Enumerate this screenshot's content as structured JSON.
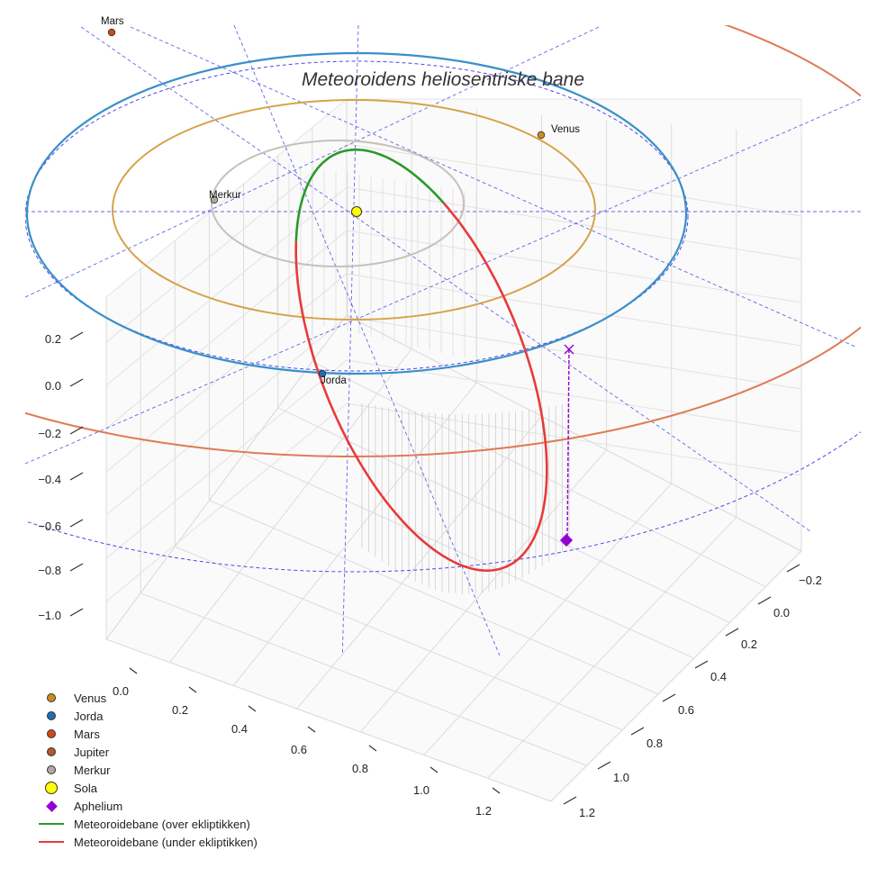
{
  "chart_data": {
    "type": "line",
    "title": "Meteoroidens heliosentriske bane",
    "axes": {
      "x_ticks": [
        "0.0",
        "0.2",
        "0.4",
        "0.6",
        "0.8",
        "1.0",
        "1.2"
      ],
      "y_ticks": [
        "−0.2",
        "0.0",
        "0.2",
        "0.4",
        "0.6",
        "0.8",
        "1.0",
        "1.2"
      ],
      "z_ticks": [
        "0.2",
        "0.0",
        "−0.2",
        "−0.4",
        "−0.6",
        "−0.8",
        "−1.0"
      ],
      "grid": true
    },
    "planets": [
      {
        "name": "Merkur",
        "color": "#b0a8a4",
        "label": "Merkur"
      },
      {
        "name": "Venus",
        "color": "#d08a1c",
        "label": "Venus"
      },
      {
        "name": "Jorda",
        "color": "#1f6fb2",
        "label": "Jorda"
      },
      {
        "name": "Mars",
        "color": "#d0481c",
        "label": "Mars"
      }
    ],
    "sun": {
      "name": "Sola",
      "color": "#ffff00"
    },
    "aphelium": {
      "name": "Aphelium",
      "color": "#9400d3"
    },
    "series": [
      {
        "name": "Meteoroidebane (over ekliptikken)",
        "color": "#2a9a2a"
      },
      {
        "name": "Meteoroidebane (under ekliptikken)",
        "color": "#e83a3a"
      }
    ],
    "legend": {
      "position": "bottom-left",
      "items": [
        {
          "label": "Venus",
          "kind": "dot",
          "color": "#d08a1c"
        },
        {
          "label": "Jorda",
          "kind": "dot",
          "color": "#1f6fb2"
        },
        {
          "label": "Mars",
          "kind": "dot",
          "color": "#d0481c"
        },
        {
          "label": "Jupiter",
          "kind": "dot",
          "color": "#b25a2a"
        },
        {
          "label": "Merkur",
          "kind": "dot",
          "color": "#b0a8a4"
        },
        {
          "label": "Sola",
          "kind": "sun",
          "color": "#ffff00"
        },
        {
          "label": "Aphelium",
          "kind": "diamond",
          "color": "#9400d3"
        },
        {
          "label": "Meteoroidebane (over ekliptikken)",
          "kind": "line",
          "color": "#2a9a2a"
        },
        {
          "label": "Meteoroidebane (under ekliptikken)",
          "kind": "line",
          "color": "#e83a3a"
        }
      ]
    }
  }
}
